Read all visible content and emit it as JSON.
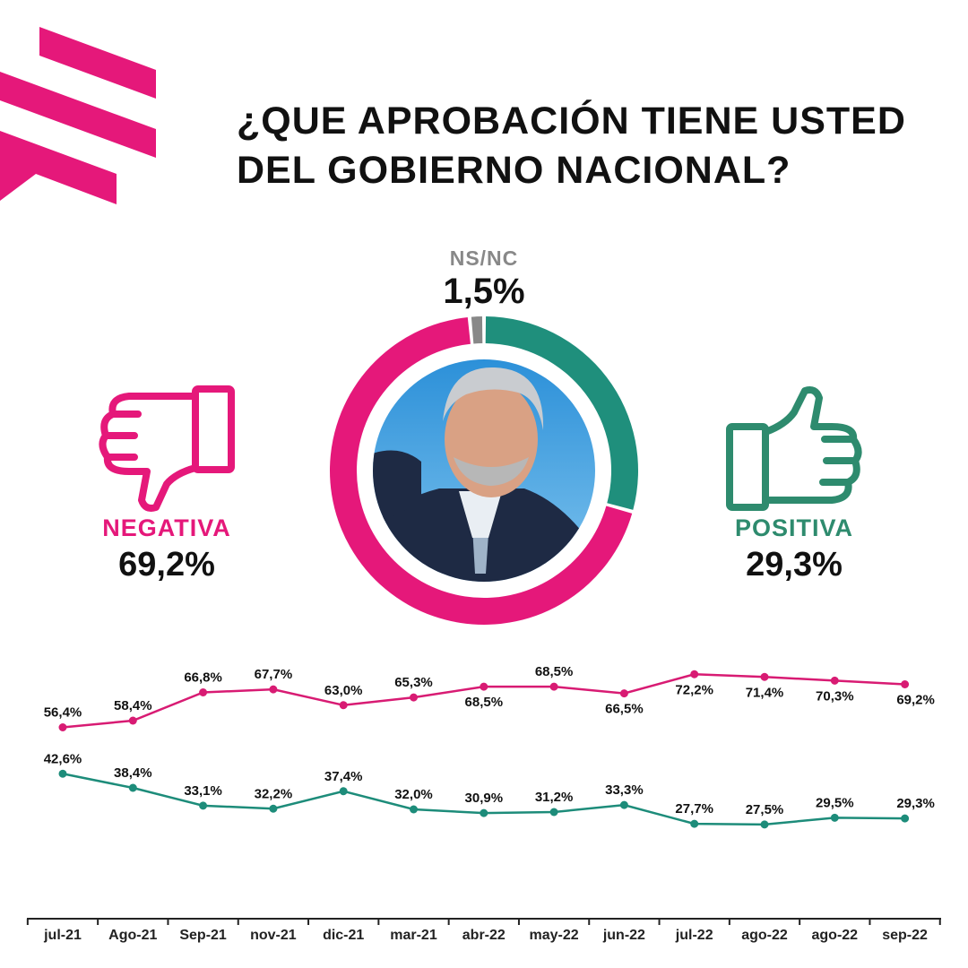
{
  "title": "¿QUE APROBACIÓN TIENE USTED DEL GOBIERNO NACIONAL?",
  "colors": {
    "negative": "#e5187a",
    "positive": "#1f8f7c",
    "nsnc": "#888888"
  },
  "summary": {
    "nsnc": {
      "label": "NS/NC",
      "value": "1,5%"
    },
    "negative": {
      "label": "NEGATIVA",
      "value": "69,2%"
    },
    "positive": {
      "label": "POSITIVA",
      "value": "29,3%"
    }
  },
  "icons": {
    "negative": "thumbs-down-icon",
    "positive": "thumbs-up-icon",
    "logo": "brand-logo-icon",
    "photo": "portrait-photo"
  },
  "chart_data": [
    {
      "type": "pie",
      "categories": [
        "POSITIVA",
        "NEGATIVA",
        "NS/NC"
      ],
      "values": [
        29.3,
        69.2,
        1.5
      ]
    },
    {
      "type": "line",
      "categories": [
        "jul-21",
        "Ago-21",
        "Sep-21",
        "nov-21",
        "dic-21",
        "mar-21",
        "abr-22",
        "may-22",
        "jun-22",
        "jul-22",
        "ago-22",
        "ago-22",
        "sep-22"
      ],
      "series": [
        {
          "values": [
            56.4,
            58.4,
            66.8,
            67.7,
            63.0,
            65.3,
            68.5,
            68.5,
            66.5,
            72.2,
            71.4,
            70.3,
            69.2
          ],
          "labels": [
            "56,4%",
            "58,4%",
            "66,8%",
            "67,7%",
            "63,0%",
            "65,3%",
            "68,5%",
            "68,5%",
            "66,5%",
            "72,2%",
            "71,4%",
            "70,3%",
            "69,2%"
          ]
        },
        {
          "values": [
            42.6,
            38.4,
            33.1,
            32.2,
            37.4,
            32.0,
            30.9,
            31.2,
            33.3,
            27.7,
            27.5,
            29.5,
            29.3
          ],
          "labels": [
            "42,6%",
            "38,4%",
            "33,1%",
            "32,2%",
            "37,4%",
            "32,0%",
            "30,9%",
            "31,2%",
            "33,3%",
            "27,7%",
            "27,5%",
            "29,5%",
            "29,3%"
          ]
        }
      ]
    }
  ]
}
